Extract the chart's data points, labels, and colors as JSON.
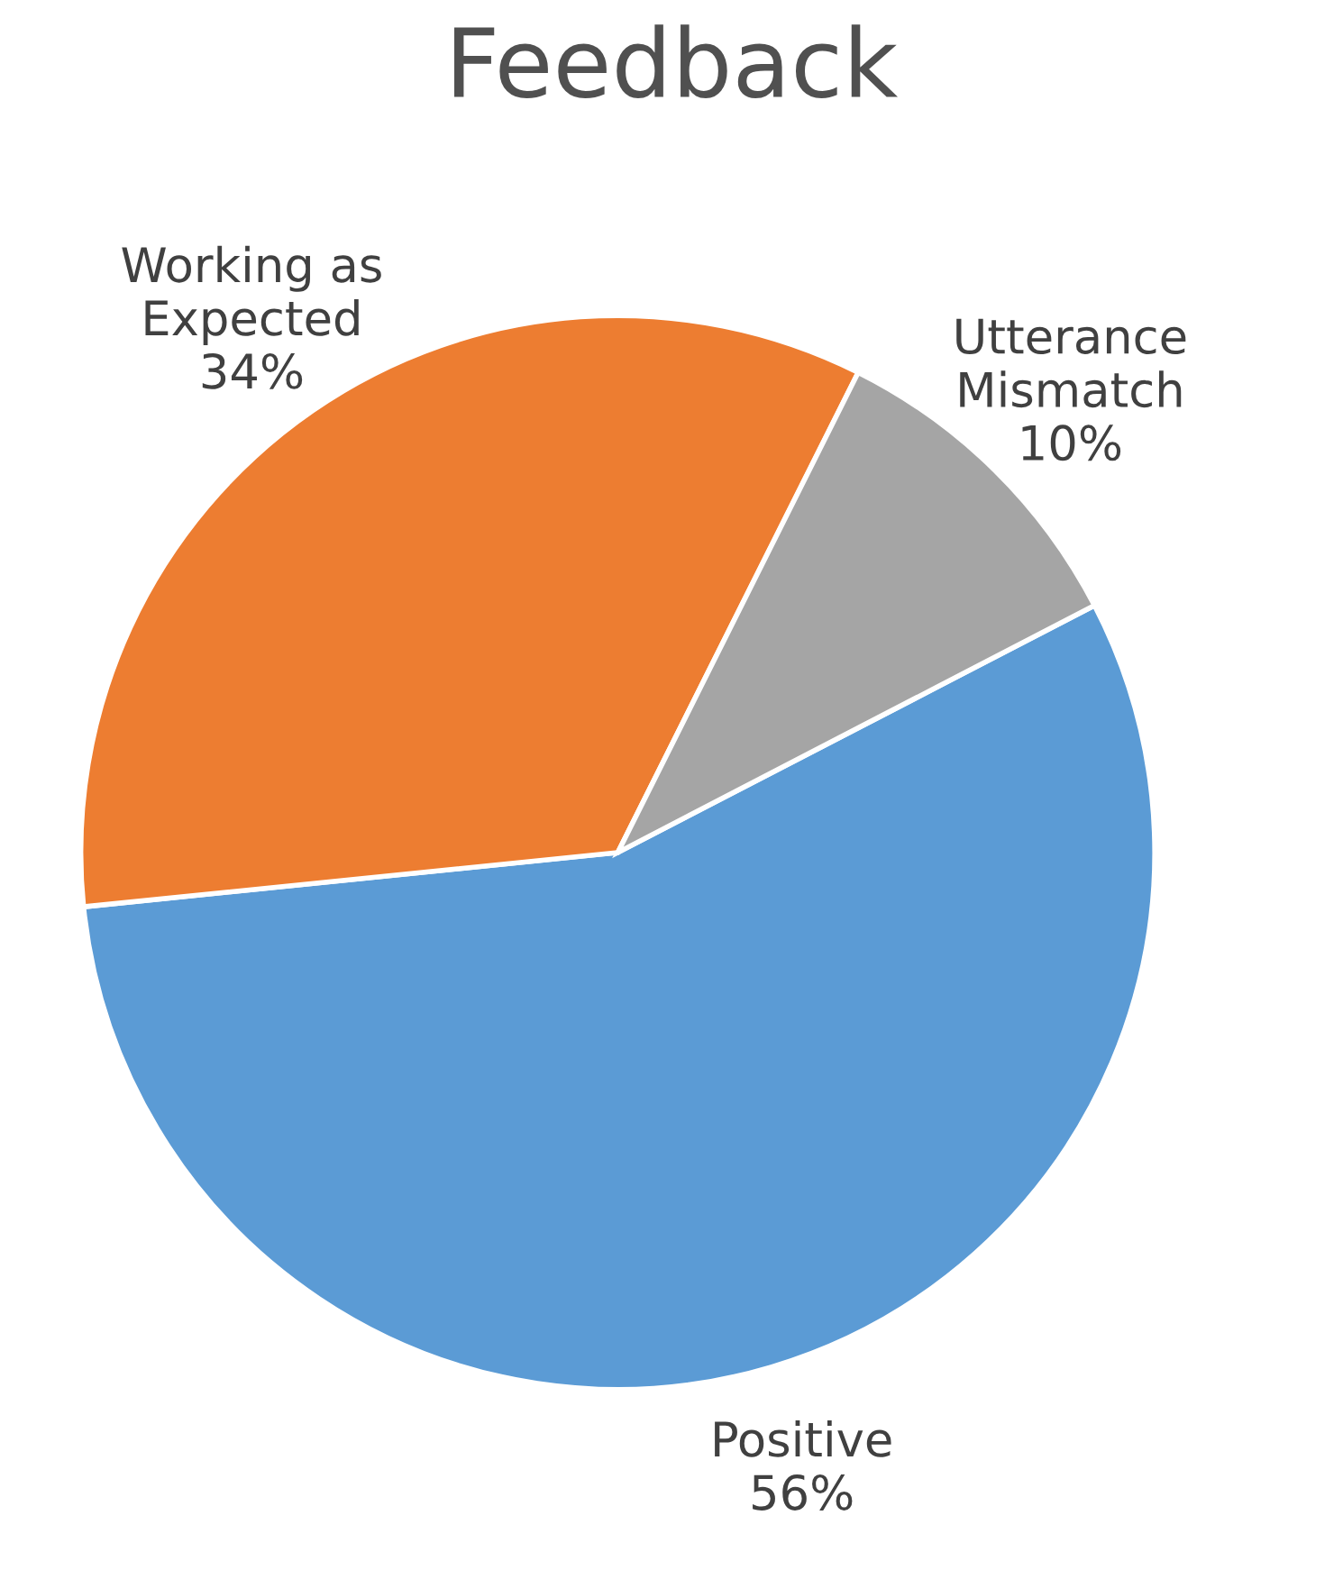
{
  "chart_data": {
    "type": "pie",
    "title": "Feedback",
    "categories": [
      "Positive",
      "Working as Expected",
      "Utterance Mismatch"
    ],
    "values": [
      56,
      34,
      10
    ],
    "value_labels": [
      "56%",
      "34%",
      "10%"
    ],
    "colors": [
      "#5b9bd5",
      "#ed7d31",
      "#a5a5a5"
    ]
  }
}
